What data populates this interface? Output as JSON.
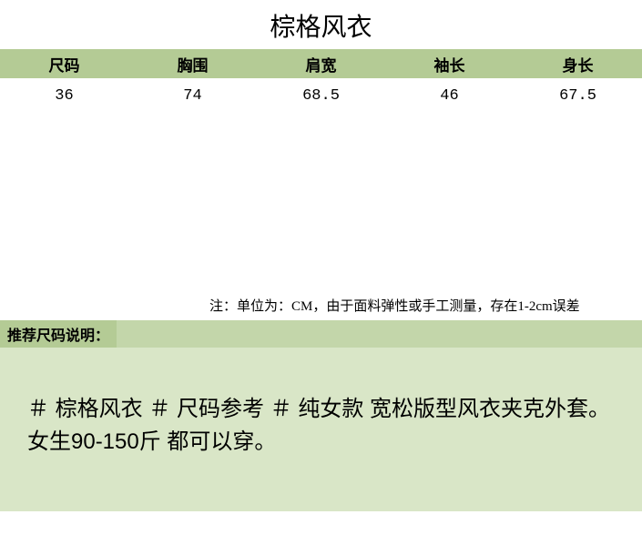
{
  "title": "棕格风衣",
  "colors": {
    "header_bg": "#b4cb95",
    "recommend_bar_bg": "#c3d6aa",
    "recommend_label_bg": "#b4cb95",
    "desc_block_bg": "#d9e6c7",
    "text": "#000000",
    "white": "#ffffff"
  },
  "table": {
    "columns": [
      "尺码",
      "胸围",
      "肩宽",
      "袖长",
      "身长"
    ],
    "rows": [
      [
        "36",
        "74",
        "68.5",
        "46",
        "67.5"
      ]
    ]
  },
  "note": "注：单位为：CM，由于面料弹性或手工测量，存在1-2cm误差",
  "recommend_label": "推荐尺码说明：",
  "description": "＃ 棕格风衣 ＃ 尺码参考 ＃ 纯女款  宽松版型风衣夹克外套。女生90-150斤  都可以穿。"
}
